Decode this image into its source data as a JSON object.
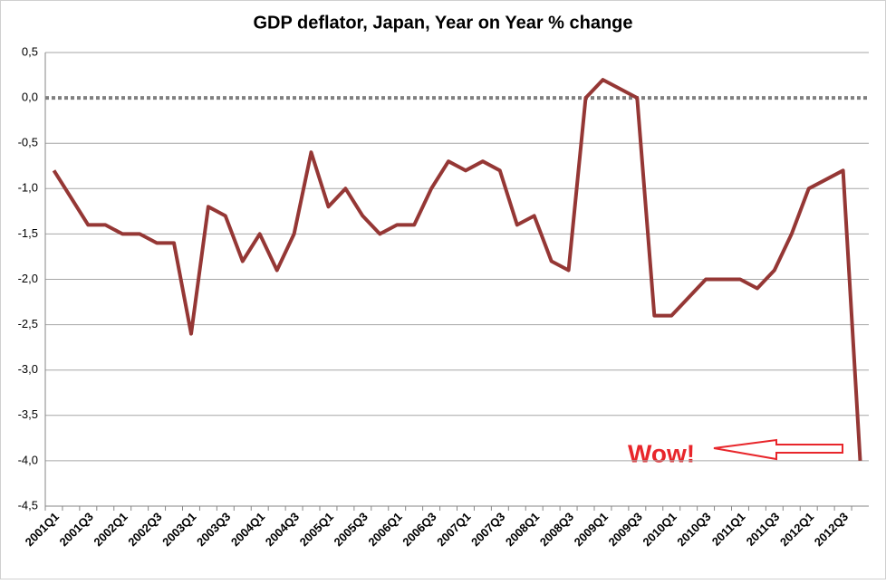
{
  "chart_data": {
    "type": "line",
    "title": "GDP deflator, Japan, Year on Year % change",
    "categories": [
      "2001Q1",
      null,
      "2001Q3",
      null,
      "2002Q1",
      null,
      "2002Q3",
      null,
      "2003Q1",
      null,
      "2003Q3",
      null,
      "2004Q1",
      null,
      "2004Q3",
      null,
      "2005Q1",
      null,
      "2005Q3",
      null,
      "2006Q1",
      null,
      "2006Q3",
      null,
      "2007Q1",
      null,
      "2007Q3",
      null,
      "2008Q1",
      null,
      "2008Q3",
      null,
      "2009Q1",
      null,
      "2009Q3",
      null,
      "2010Q1",
      null,
      "2010Q3",
      null,
      "2011Q1",
      null,
      "2011Q3",
      null,
      "2012Q1",
      null,
      "2012Q3",
      null
    ],
    "series": [
      {
        "color": "#953735",
        "values": [
          -0.8,
          -1.1,
          -1.4,
          -1.4,
          -1.5,
          -1.5,
          -1.6,
          -1.6,
          -2.6,
          -1.2,
          -1.3,
          -1.8,
          -1.5,
          -1.9,
          -1.5,
          -0.6,
          -1.2,
          -1.0,
          -1.3,
          -1.5,
          -1.4,
          -1.4,
          -1.0,
          -0.7,
          -0.8,
          -0.7,
          -0.8,
          -1.4,
          -1.3,
          -1.8,
          -1.9,
          0.0,
          0.2,
          0.1,
          0.0,
          -2.4,
          -2.4,
          -2.2,
          -2.0,
          -2.0,
          -2.0,
          -2.1,
          -1.9,
          -1.5,
          -1.0,
          -0.9,
          -0.8,
          -4.0
        ]
      }
    ],
    "ylim": [
      -4.5,
      0.5
    ],
    "yticks": [
      {
        "value": 0.5,
        "label": "0,5"
      },
      {
        "value": 0,
        "label": "0,0"
      },
      {
        "value": -0.5,
        "label": "-0,5"
      },
      {
        "value": -1,
        "label": "-1,0"
      },
      {
        "value": -1.5,
        "label": "-1,5"
      },
      {
        "value": -2,
        "label": "-2,0"
      },
      {
        "value": -2.5,
        "label": "-2,5"
      },
      {
        "value": -3,
        "label": "-3,0"
      },
      {
        "value": -3.5,
        "label": "-3,5"
      },
      {
        "value": -4,
        "label": "-4,0"
      },
      {
        "value": -4.5,
        "label": "-4,5"
      }
    ],
    "grid": true,
    "annotations": [
      {
        "text": "Wow!",
        "color": "#e8262b"
      }
    ]
  }
}
